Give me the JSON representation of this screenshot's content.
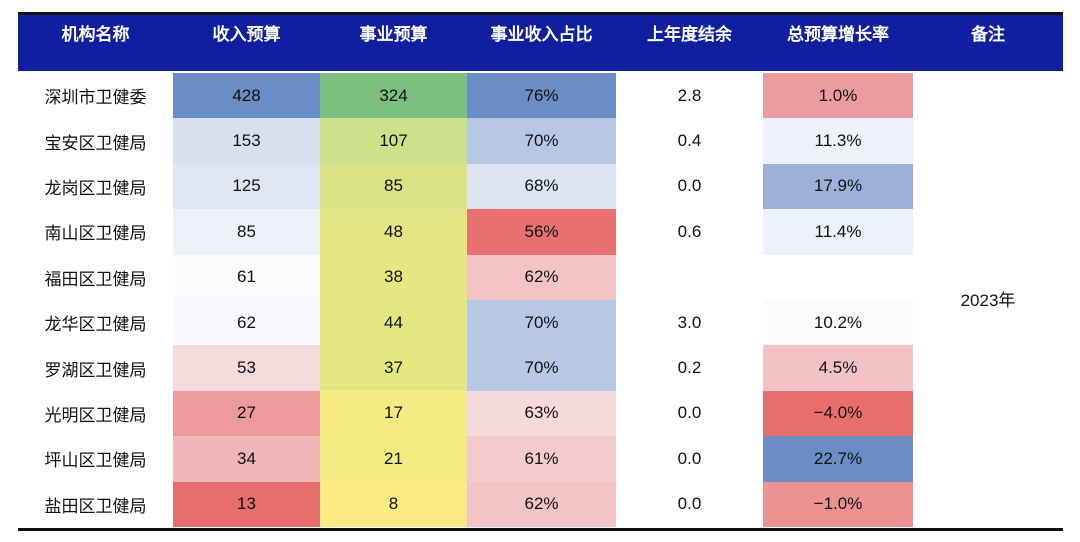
{
  "headers": [
    "机构名称",
    "收入预算",
    "事业预算",
    "事业收入占比",
    "上年度结余",
    "总预算增长率",
    "备注"
  ],
  "note": "2023年",
  "rows": [
    {
      "name": "深圳市卫健委",
      "income": "428",
      "business": "324",
      "ratio": "76%",
      "balance": "2.8",
      "growth": "1.0%"
    },
    {
      "name": "宝安区卫健局",
      "income": "153",
      "business": "107",
      "ratio": "70%",
      "balance": "0.4",
      "growth": "11.3%"
    },
    {
      "name": "龙岗区卫健局",
      "income": "125",
      "business": "85",
      "ratio": "68%",
      "balance": "0.0",
      "growth": "17.9%"
    },
    {
      "name": "南山区卫健局",
      "income": "85",
      "business": "48",
      "ratio": "56%",
      "balance": "0.6",
      "growth": "11.4%"
    },
    {
      "name": "福田区卫健局",
      "income": "61",
      "business": "38",
      "ratio": "62%",
      "balance": "",
      "growth": ""
    },
    {
      "name": "龙华区卫健局",
      "income": "62",
      "business": "44",
      "ratio": "70%",
      "balance": "3.0",
      "growth": "10.2%"
    },
    {
      "name": "罗湖区卫健局",
      "income": "53",
      "business": "37",
      "ratio": "70%",
      "balance": "0.2",
      "growth": "4.5%"
    },
    {
      "name": "光明区卫健局",
      "income": "27",
      "business": "17",
      "ratio": "63%",
      "balance": "0.0",
      "growth": "−4.0%"
    },
    {
      "name": "坪山区卫健局",
      "income": "34",
      "business": "21",
      "ratio": "61%",
      "balance": "0.0",
      "growth": "22.7%"
    },
    {
      "name": "盐田区卫健局",
      "income": "13",
      "business": "8",
      "ratio": "62%",
      "balance": "0.0",
      "growth": "−1.0%"
    }
  ],
  "colors": {
    "header_bg": "#0f1fa0",
    "income": [
      "#6a8dc6",
      "#d6e0ef",
      "#dfe6f2",
      "#eef2f8",
      "#fbfbfd",
      "#f8f9fc",
      "#f6dadc",
      "#ec9a9b",
      "#f0b5b7",
      "#e86e6e"
    ],
    "business": [
      "#7cbf7e",
      "#cfe08a",
      "#d8e388",
      "#e3e682",
      "#e6e781",
      "#e4e681",
      "#e6e781",
      "#f5eb82",
      "#f3ea82",
      "#f8eb84"
    ],
    "ratio": [
      "#6a8dc6",
      "#b6c8e3",
      "#dde4f1",
      "#e87070",
      "#f2c4c6",
      "#b6c8e3",
      "#b6c8e3",
      "#f6d9db",
      "#f3cbcd",
      "#f2c4c6"
    ],
    "balance": [
      "#ffffff",
      "#ffffff",
      "#ffffff",
      "#ffffff",
      "#ffffff",
      "#ffffff",
      "#ffffff",
      "#ffffff",
      "#ffffff",
      "#ffffff"
    ],
    "growth": [
      "#ec9c9d",
      "#edf1f9",
      "#9bb1d9",
      "#edf1f9",
      "#ffffff",
      "#fbfbfd",
      "#f2c3c5",
      "#e86e6e",
      "#6a8dc6",
      "#ec9293"
    ]
  }
}
